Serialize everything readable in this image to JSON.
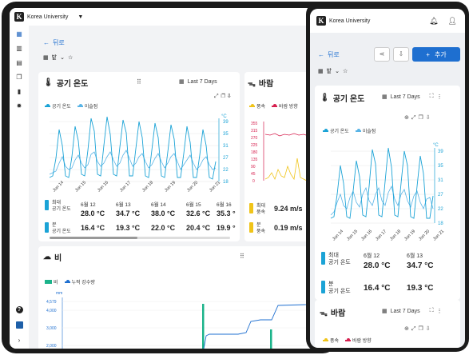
{
  "colors": {
    "accent": "#1e6fd0",
    "temp_max": "#1ba3d6",
    "dew": "#59b4e6",
    "wind_speed": "#f0c419",
    "wind_dir": "#d6204f",
    "rain": "#1bb38a"
  },
  "tablet": {
    "org_name": "Korea University",
    "back_label": "뒤로",
    "filter_label": "밭",
    "temp_card": {
      "title": "공기 온도",
      "range": "Last 7 Days",
      "legend": [
        "공기 온도",
        "이슬점"
      ],
      "unit": "°C",
      "y_ticks": [
        "39",
        "35",
        "31",
        "27",
        "22",
        "18"
      ],
      "x_ticks": [
        "Jun 14",
        "Jun 15",
        "Jun 16",
        "Jun 17",
        "Jun 18",
        "Jun 19",
        "Jun 20",
        "Jun 21"
      ],
      "max_label_1": "최대",
      "max_label_2": "공기 온도",
      "min_label_1": "분",
      "min_label_2": "공기 온도",
      "stats_days": [
        "6월 12",
        "6월 13",
        "6월 14",
        "6월 15",
        "6월 16"
      ],
      "stats_max": [
        "28.0 °C",
        "34.7 °C",
        "38.0 °C",
        "32.6 °C",
        "35.3 °"
      ],
      "stats_min": [
        "16.4 °C",
        "19.3 °C",
        "22.0 °C",
        "20.4 °C",
        "19.9 °"
      ]
    },
    "wind_card": {
      "title": "바람",
      "legend": [
        "풍속",
        "바람 방향"
      ],
      "y_ticks": [
        "355",
        "315",
        "270",
        "225",
        "180",
        "135",
        "90",
        "45",
        "0"
      ],
      "max_label_1": "최대",
      "max_label_2": "풍속",
      "min_label_1": "분",
      "min_label_2": "풍속",
      "stat_max": "9.24 m/s",
      "stat_min": "0.19 m/s"
    },
    "rain_card": {
      "title": "비",
      "legend": [
        "비",
        "누적 강수량"
      ],
      "unit": "mm",
      "y_ticks": [
        "4,579",
        "4,000",
        "3,000",
        "2,000"
      ]
    }
  },
  "phone": {
    "org_name": "Korea University",
    "back_label": "뒤로",
    "add_label": "추가",
    "filter_label": "밭",
    "temp_card": {
      "title": "공기 온도",
      "range": "Last 7 Days",
      "legend": [
        "공기 온도",
        "이슬점"
      ],
      "unit": "°C",
      "y_ticks": [
        "39",
        "35",
        "31",
        "27",
        "22",
        "18"
      ],
      "x_ticks": [
        "Jun 14",
        "Jun 15",
        "Jun 16",
        "Jun 17",
        "Jun 18",
        "Jun 19",
        "Jun 20",
        "Jun 21"
      ],
      "max_label_1": "최대",
      "max_label_2": "공기 온도",
      "min_label_1": "분",
      "min_label_2": "공기 온도",
      "stats_days": [
        "6월 12",
        "6월 13"
      ],
      "stats_max": [
        "28.0 °C",
        "34.7 °C"
      ],
      "stats_min": [
        "16.4 °C",
        "19.3 °C"
      ]
    },
    "wind_card": {
      "title": "바람",
      "range": "Last 7 Days",
      "legend": [
        "풍속",
        "바람 방향"
      ]
    }
  }
}
